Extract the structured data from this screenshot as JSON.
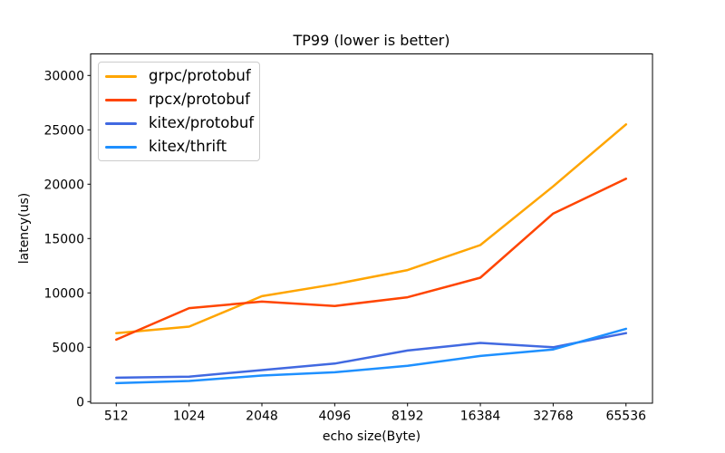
{
  "chart_data": {
    "type": "line",
    "title": "TP99 (lower is better)",
    "xlabel": "echo size(Byte)",
    "ylabel": "latency(us)",
    "categories": [
      "512",
      "1024",
      "2048",
      "4096",
      "8192",
      "16384",
      "32768",
      "65536"
    ],
    "series": [
      {
        "name": "grpc/protobuf",
        "color": "#ffa500",
        "values": [
          6300,
          6900,
          9700,
          10800,
          12100,
          14400,
          19800,
          25500
        ]
      },
      {
        "name": "rpcx/protobuf",
        "color": "#ff4500",
        "values": [
          5700,
          8600,
          9200,
          8800,
          9600,
          11400,
          17300,
          20500
        ]
      },
      {
        "name": "kitex/protobuf",
        "color": "#4169e1",
        "values": [
          2200,
          2300,
          2900,
          3500,
          4700,
          5400,
          5000,
          6300
        ]
      },
      {
        "name": "kitex/thrift",
        "color": "#1e90ff",
        "values": [
          1700,
          1900,
          2400,
          2700,
          3300,
          4200,
          4800,
          6700
        ]
      }
    ],
    "y_ticks": [
      0,
      5000,
      10000,
      15000,
      20000,
      25000,
      30000
    ],
    "ylim": [
      -200,
      32000
    ],
    "grid": false,
    "legend_position": "upper left",
    "axis_color": "#000000",
    "background_color": "#ffffff"
  }
}
